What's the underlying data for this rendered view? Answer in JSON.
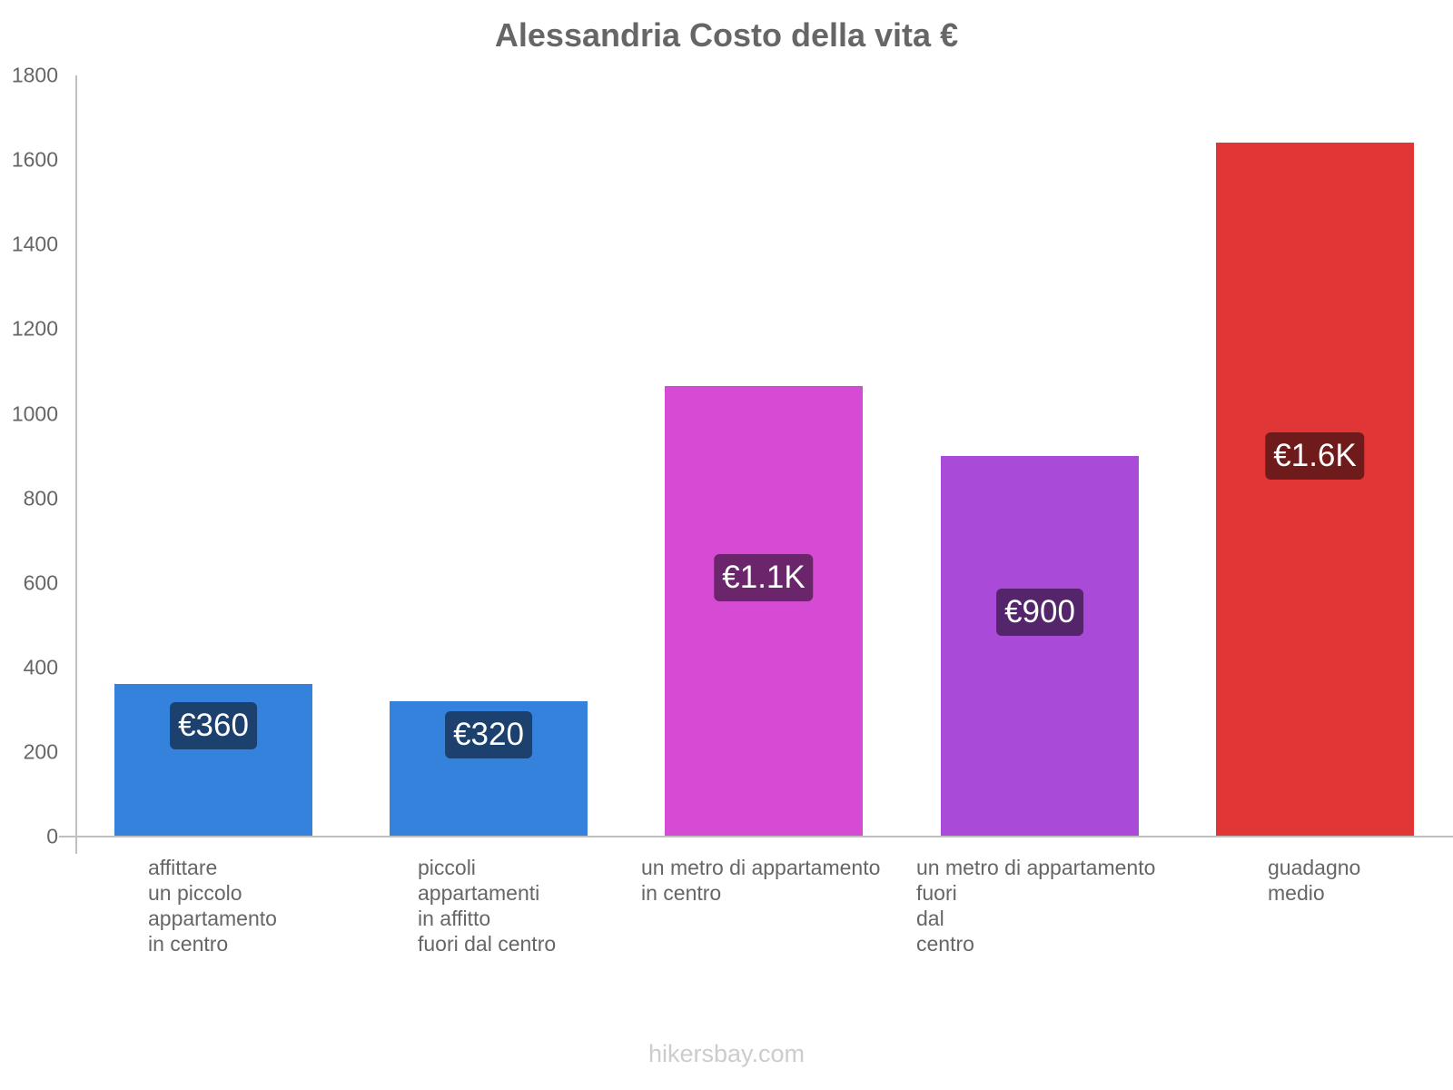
{
  "chart_data": {
    "type": "bar",
    "title": "Alessandria Costo della vita €",
    "xlabel": "",
    "ylabel": "",
    "ylim": [
      0,
      1800
    ],
    "yticks": [
      0,
      200,
      400,
      600,
      800,
      1000,
      1200,
      1400,
      1600,
      1800
    ],
    "grid": false,
    "legend": null,
    "categories": [
      "affittare un piccolo appartamento in centro",
      "piccoli appartamenti in affitto fuori dal centro",
      "un metro di appartamento in centro",
      "un metro di appartamento fuori dal centro",
      "guadagno medio"
    ],
    "values": [
      360,
      320,
      1065,
      900,
      1640
    ],
    "data_labels": [
      "€360",
      "€320",
      "€1.1K",
      "€900",
      "€1.6K"
    ],
    "colors": [
      "#3582dc",
      "#3582dc",
      "#d64bd3",
      "#a94ad8",
      "#e03636"
    ]
  },
  "title": "Alessandria Costo della vita €",
  "yticks": [
    "0",
    "200",
    "400",
    "600",
    "800",
    "1000",
    "1200",
    "1400",
    "1600",
    "1800"
  ],
  "bars": [
    {
      "label": "affittare\nun piccolo\nappartamento\nin centro",
      "value": 360,
      "data_label": "€360",
      "color": "#3582dc",
      "pill_color": "#1c416e"
    },
    {
      "label": "piccoli\nappartamenti\nin affitto\nfuori dal centro",
      "value": 320,
      "data_label": "€320",
      "color": "#3582dc",
      "pill_color": "#1c416e"
    },
    {
      "label": "un metro di appartamento\nin centro",
      "value": 1065,
      "data_label": "€1.1K",
      "color": "#d64bd3",
      "pill_color": "#6b256a"
    },
    {
      "label": "un metro di appartamento\nfuori\ndal\ncentro",
      "value": 900,
      "data_label": "€900",
      "color": "#a94ad8",
      "pill_color": "#55256c"
    },
    {
      "label": "guadagno\nmedio",
      "value": 1640,
      "data_label": "€1.6K",
      "color": "#e03636",
      "pill_color": "#701b1b"
    }
  ],
  "footer": "hikersbay.com"
}
